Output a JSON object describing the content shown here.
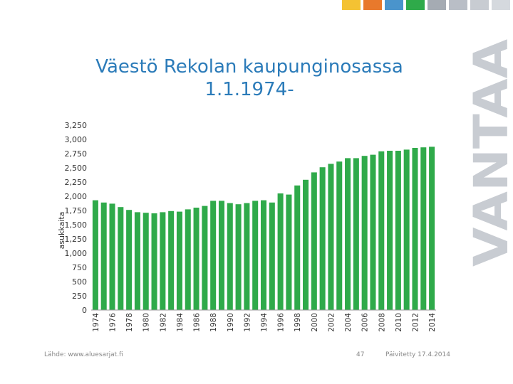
{
  "colors": {
    "bar": "#2faa4a",
    "title": "#2b7bb9",
    "brand": "#c8ccd2",
    "stripes": [
      "#f4c233",
      "#e8792c",
      "#4a94cc",
      "#2faa4a",
      "#a5abb3",
      "#b9bec6",
      "#c8ccd2",
      "#d5d9de"
    ]
  },
  "title_lines": [
    "Väestö Rekolan kaupunginosassa",
    "1.1.1974-"
  ],
  "brand_text": "VANTAA",
  "footer": {
    "source": "Lähde: www.aluesarjat.fi",
    "page": "47",
    "updated": "Päivitetty 17.4.2014"
  },
  "chart_data": {
    "type": "bar",
    "ylabel": "asukkaita",
    "xlabel": "",
    "ylim": [
      0,
      3250
    ],
    "yticks": [
      0,
      250,
      500,
      750,
      1000,
      1250,
      1500,
      1750,
      2000,
      2250,
      2500,
      2750,
      3000,
      3250
    ],
    "ytick_labels": [
      "0",
      "250",
      "500",
      "750",
      "1,000",
      "1,250",
      "1,500",
      "1,750",
      "2,000",
      "2,250",
      "2,500",
      "2,750",
      "3,000",
      "3,250"
    ],
    "x": [
      1974,
      1975,
      1976,
      1977,
      1978,
      1979,
      1980,
      1981,
      1982,
      1983,
      1984,
      1985,
      1986,
      1987,
      1988,
      1989,
      1990,
      1991,
      1992,
      1993,
      1994,
      1995,
      1996,
      1997,
      1998,
      1999,
      2000,
      2001,
      2002,
      2003,
      2004,
      2005,
      2006,
      2007,
      2008,
      2009,
      2010,
      2011,
      2012,
      2013,
      2014
    ],
    "x_tick_labels": [
      "1974",
      "1976",
      "1978",
      "1980",
      "1982",
      "1984",
      "1986",
      "1988",
      "1990",
      "1992",
      "1994",
      "1996",
      "1998",
      "2000",
      "2002",
      "2004",
      "2006",
      "2008",
      "2010",
      "2012",
      "2014"
    ],
    "values": [
      1930,
      1890,
      1870,
      1810,
      1760,
      1720,
      1710,
      1700,
      1720,
      1740,
      1730,
      1770,
      1800,
      1830,
      1920,
      1920,
      1880,
      1860,
      1880,
      1920,
      1930,
      1890,
      2050,
      2030,
      2190,
      2290,
      2420,
      2510,
      2570,
      2610,
      2670,
      2670,
      2710,
      2730,
      2790,
      2800,
      2800,
      2820,
      2850,
      2860,
      2870
    ],
    "grid": false,
    "legend": "none"
  }
}
